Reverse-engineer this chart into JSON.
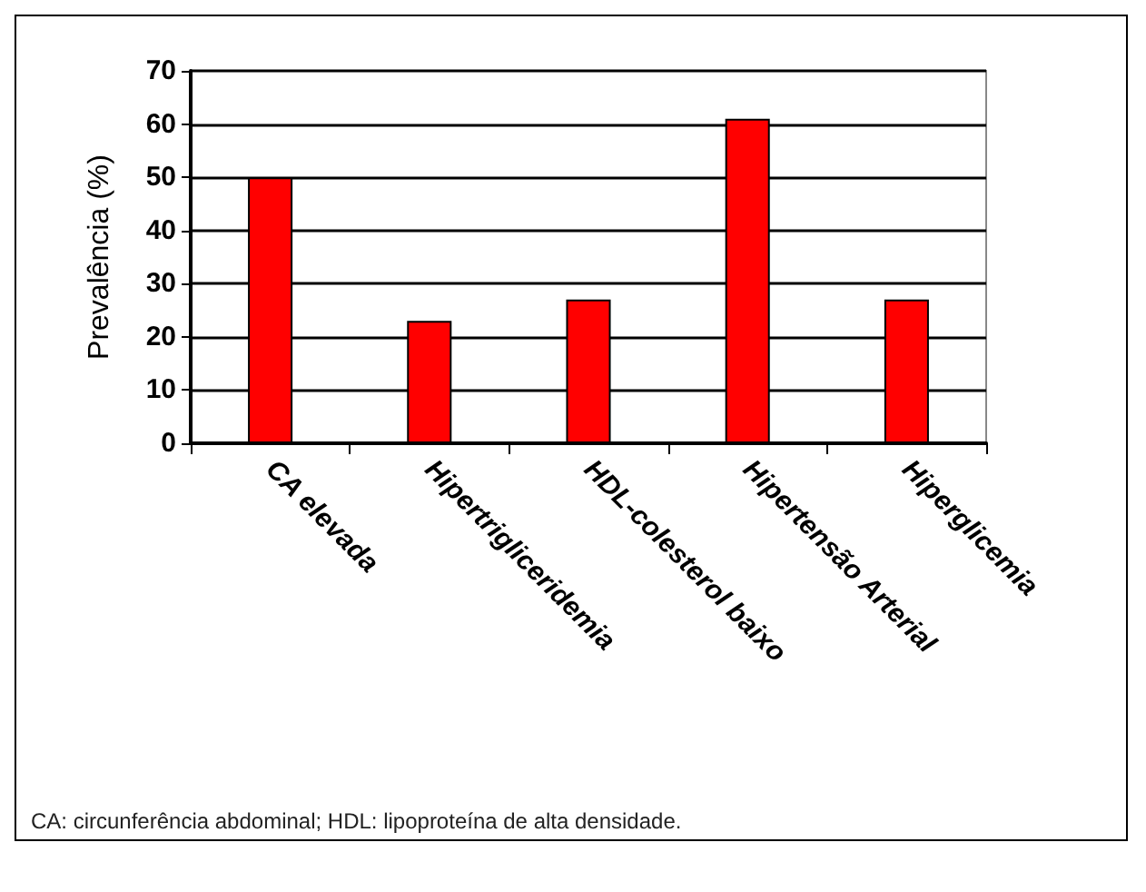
{
  "chart_data": {
    "type": "bar",
    "ylabel": "Prevalência (%)",
    "categories": [
      "CA elevada",
      "Hipertrigliceridemia",
      "HDL-colesterol baixo",
      "Hipertensão Arterial",
      "Hiperglicemia"
    ],
    "values": [
      50,
      23,
      27,
      61,
      27
    ],
    "color": "#ff0000",
    "ylim": [
      0,
      70
    ],
    "yticks": [
      0,
      10,
      20,
      30,
      40,
      50,
      60,
      70
    ],
    "grid": "y",
    "annotations": [
      "CA: circunferência abdominal; HDL: lipoproteína de alta densidade."
    ]
  }
}
